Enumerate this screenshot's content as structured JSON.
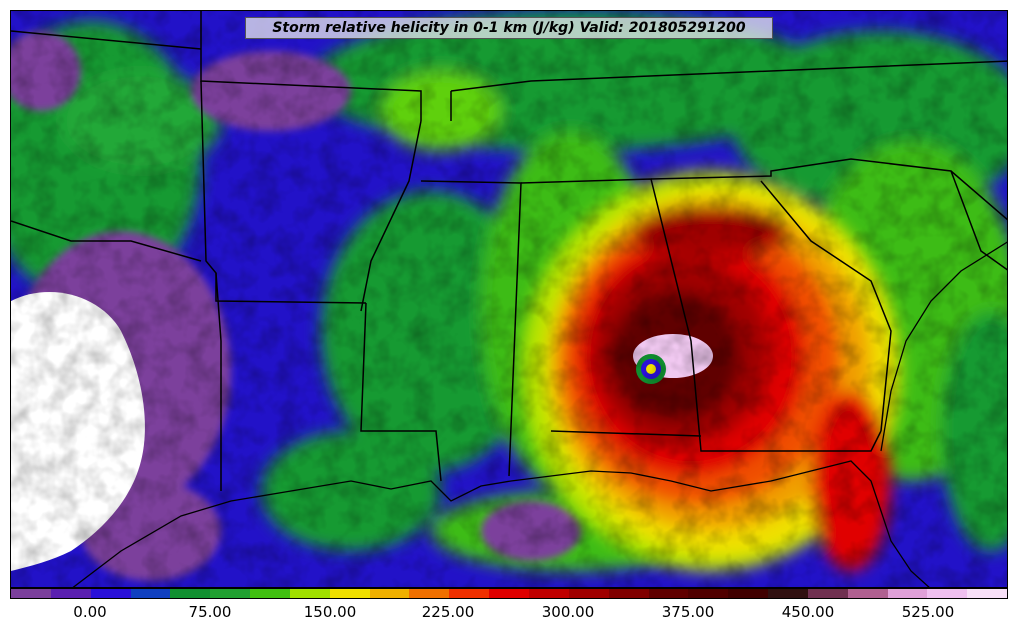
{
  "title": "Storm relative helicity in 0-1 km (J/kg) Valid: 201805291200",
  "colorbar": {
    "colors": [
      "#7b3f9c",
      "#5a1fb0",
      "#2a10d8",
      "#1040c0",
      "#109030",
      "#20a030",
      "#40c010",
      "#a0e000",
      "#f0e000",
      "#f0b000",
      "#f07000",
      "#f03000",
      "#e00000",
      "#c00000",
      "#a00000",
      "#800000",
      "#600000",
      "#500000",
      "#400000",
      "#301010",
      "#703050",
      "#b06090",
      "#e0a0d8",
      "#f0c0f0",
      "#f8e0f8"
    ],
    "tick_labels": [
      "0.00",
      "75.00",
      "150.00",
      "225.00",
      "300.00",
      "375.00",
      "450.00",
      "525.00"
    ]
  }
}
